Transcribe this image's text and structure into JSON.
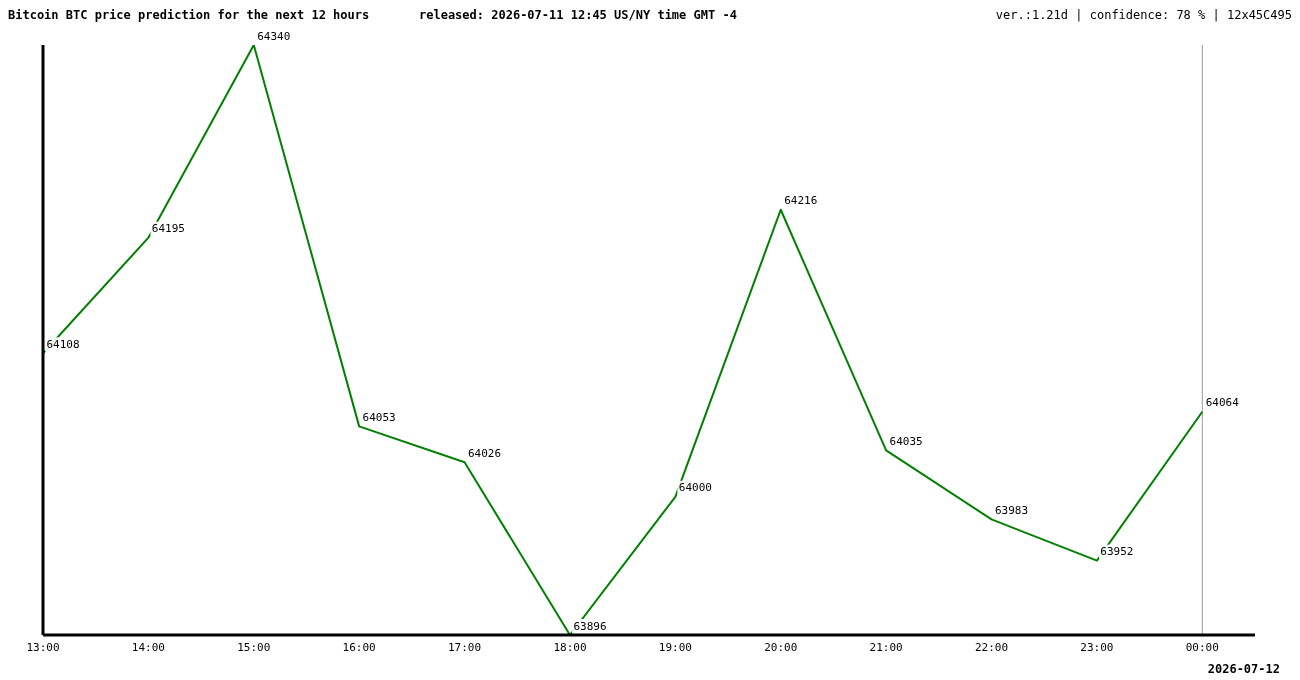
{
  "chart_data": {
    "type": "line",
    "title": "Bitcoin BTC price prediction for the next 12 hours",
    "subtitle": "released: 2026-07-11 12:45 US/NY time GMT -4",
    "x": [
      13,
      14,
      15,
      16,
      17,
      18,
      19,
      20,
      21,
      22,
      23,
      24
    ],
    "series": [
      {
        "color": "#008000",
        "values": [
          64108,
          64195,
          64340,
          64053,
          64026,
          63896,
          64000,
          64216,
          64035,
          63983,
          63952,
          64064
        ]
      }
    ],
    "xlim": [
      13,
      24.5
    ],
    "xticks": [
      {
        "value": 13,
        "label": "13:00"
      },
      {
        "value": 14,
        "label": "14:00"
      },
      {
        "value": 15,
        "label": "15:00"
      },
      {
        "value": 16,
        "label": "16:00"
      },
      {
        "value": 17,
        "label": "17:00"
      },
      {
        "value": 18,
        "label": "18:00"
      },
      {
        "value": 19,
        "label": "19:00"
      },
      {
        "value": 20,
        "label": "20:00"
      },
      {
        "value": 21,
        "label": "21:00"
      },
      {
        "value": 22,
        "label": "22:00"
      },
      {
        "value": 23,
        "label": "23:00"
      },
      {
        "value": 24,
        "label": "00:00"
      }
    ],
    "ref_lines": [
      {
        "axis": "x",
        "value": 24,
        "color": "#999999"
      }
    ],
    "annotations": [
      "ver.:1.21d | confidence: 78 % | 12x45C495",
      "2026-07-12"
    ],
    "data_labels": true,
    "tick_labels": "x",
    "grid": false,
    "legend": false,
    "marker": "none",
    "line_style": "solid"
  }
}
